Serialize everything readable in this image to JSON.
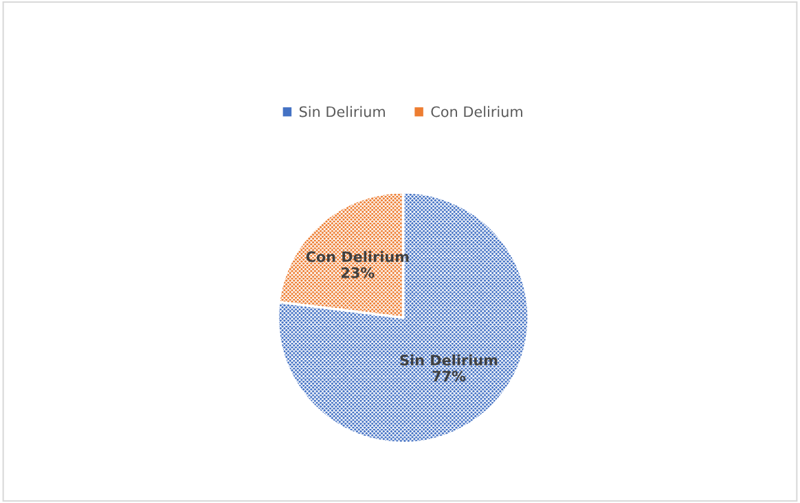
{
  "chart_data": {
    "type": "pie",
    "categories": [
      "Sin Delirium",
      "Con Delirium"
    ],
    "values": [
      77,
      23
    ],
    "colors": [
      "#4472c4",
      "#ed7d31"
    ],
    "value_labels": [
      "77%",
      "23%"
    ],
    "legend": "top"
  }
}
